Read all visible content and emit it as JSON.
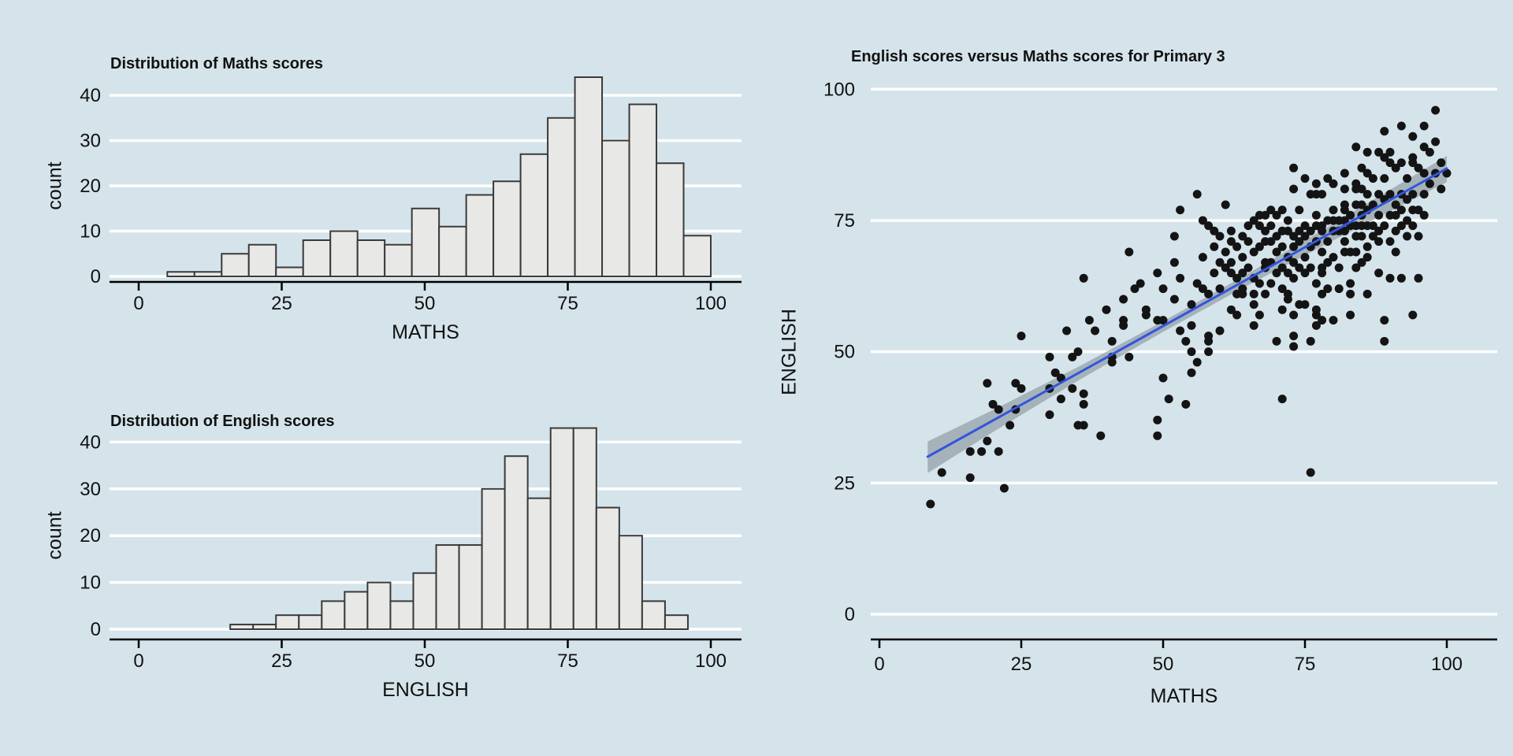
{
  "canvas": {
    "background": "#d5e4eb",
    "grid_color": "#ffffff",
    "text_color": "#111111"
  },
  "plots": {
    "maths_hist": {
      "title": "Distribution of Maths scores",
      "xlabel": "MATHS",
      "ylabel": "count"
    },
    "english_hist": {
      "title": "Distribution of English scores",
      "xlabel": "ENGLISH",
      "ylabel": "count"
    },
    "scatter": {
      "title": "English scores versus Maths scores for Primary 3",
      "xlabel": "MATHS",
      "ylabel": "ENGLISH"
    }
  },
  "chart_data": [
    {
      "id": "maths",
      "type": "bar",
      "title": "Distribution of Maths scores",
      "xlabel": "MATHS",
      "ylabel": "count",
      "bin_start": 5,
      "bin_width": 4.75,
      "counts": [
        1,
        1,
        5,
        7,
        2,
        8,
        10,
        8,
        7,
        15,
        11,
        18,
        21,
        27,
        35,
        44,
        30,
        38,
        25,
        9
      ],
      "x_ticks": [
        0,
        25,
        50,
        75,
        100
      ],
      "y_ticks": [
        0,
        10,
        20,
        30,
        40
      ],
      "xlim": [
        -5,
        105
      ],
      "ylim": [
        0,
        46
      ],
      "grid": true,
      "bar_fill": "#e8e8e6",
      "bar_stroke": "#3a3a3a"
    },
    {
      "id": "english",
      "type": "bar",
      "title": "Distribution of English scores",
      "xlabel": "ENGLISH",
      "ylabel": "count",
      "bin_start": 16,
      "bin_width": 4,
      "counts": [
        1,
        1,
        3,
        3,
        6,
        8,
        10,
        6,
        12,
        18,
        18,
        30,
        37,
        28,
        43,
        43,
        26,
        20,
        6,
        3
      ],
      "x_ticks": [
        0,
        25,
        50,
        75,
        100
      ],
      "y_ticks": [
        0,
        10,
        20,
        30,
        40
      ],
      "xlim": [
        -5,
        105
      ],
      "ylim": [
        0,
        46
      ],
      "grid": true,
      "bar_fill": "#e8e8e6",
      "bar_stroke": "#3a3a3a"
    },
    {
      "id": "scatter",
      "type": "scatter",
      "title": "English scores versus Maths scores for Primary 3",
      "xlabel": "MATHS",
      "ylabel": "ENGLISH",
      "x_ticks": [
        0,
        25,
        50,
        75,
        100
      ],
      "y_ticks": [
        0,
        25,
        50,
        75,
        100
      ],
      "xlim": [
        0,
        105
      ],
      "ylim": [
        0,
        105
      ],
      "grid": true,
      "point_color": "#141414",
      "point_radius": 5.5,
      "regression": {
        "x1": 8.5,
        "y1": 30.0,
        "x2": 100,
        "y2": 84.9,
        "color": "#3355dd",
        "width": 3
      },
      "ci_band": {
        "x": [
          8.5,
          20,
          35,
          50,
          65,
          80,
          100
        ],
        "upper": [
          32.9,
          38.9,
          47.1,
          55.8,
          64.9,
          74.4,
          87.3
        ],
        "lower": [
          26.9,
          34.7,
          44.5,
          53.8,
          62.7,
          71.2,
          82.3
        ],
        "color": "rgba(125,136,146,0.55)"
      },
      "points": [
        [
          9,
          21
        ],
        [
          11,
          27
        ],
        [
          16,
          26
        ],
        [
          22,
          24
        ],
        [
          16,
          31
        ],
        [
          18,
          31
        ],
        [
          21,
          31
        ],
        [
          19,
          33
        ],
        [
          23,
          36
        ],
        [
          35,
          36
        ],
        [
          36,
          36
        ],
        [
          30,
          38
        ],
        [
          39,
          34
        ],
        [
          21,
          39
        ],
        [
          24,
          39
        ],
        [
          20,
          40
        ],
        [
          36,
          40
        ],
        [
          32,
          41
        ],
        [
          36,
          42
        ],
        [
          25,
          43
        ],
        [
          30,
          43
        ],
        [
          34,
          43
        ],
        [
          19,
          44
        ],
        [
          24,
          44
        ],
        [
          31,
          46
        ],
        [
          32,
          45
        ],
        [
          50,
          45
        ],
        [
          41,
          48
        ],
        [
          30,
          49
        ],
        [
          34,
          49
        ],
        [
          41,
          49
        ],
        [
          44,
          49
        ],
        [
          35,
          50
        ],
        [
          51,
          41
        ],
        [
          54,
          40
        ],
        [
          71,
          41
        ],
        [
          49,
          34
        ],
        [
          49,
          37
        ],
        [
          55,
          46
        ],
        [
          56,
          48
        ],
        [
          55,
          50
        ],
        [
          58,
          50
        ],
        [
          58,
          52
        ],
        [
          54,
          52
        ],
        [
          70,
          52
        ],
        [
          73,
          51
        ],
        [
          76,
          52
        ],
        [
          89,
          52
        ],
        [
          41,
          52
        ],
        [
          76,
          27
        ],
        [
          25,
          53
        ],
        [
          53,
          54
        ],
        [
          55,
          55
        ],
        [
          53,
          64
        ],
        [
          33,
          54
        ],
        [
          38,
          54
        ],
        [
          43,
          55
        ],
        [
          37,
          56
        ],
        [
          43,
          56
        ],
        [
          47,
          57
        ],
        [
          49,
          56
        ],
        [
          50,
          56
        ],
        [
          47,
          58
        ],
        [
          40,
          58
        ],
        [
          43,
          60
        ],
        [
          45,
          62
        ],
        [
          46,
          63
        ],
        [
          50,
          62
        ],
        [
          36,
          64
        ],
        [
          49,
          65
        ],
        [
          44,
          69
        ],
        [
          52,
          60
        ],
        [
          52,
          72
        ],
        [
          52,
          67
        ],
        [
          55,
          59
        ],
        [
          57,
          62
        ],
        [
          58,
          61
        ],
        [
          58,
          53
        ],
        [
          60,
          54
        ],
        [
          63,
          57
        ],
        [
          62,
          58
        ],
        [
          67,
          57
        ],
        [
          66,
          55
        ],
        [
          73,
          53
        ],
        [
          83,
          57
        ],
        [
          89,
          56
        ],
        [
          86,
          61
        ],
        [
          94,
          57
        ],
        [
          60,
          67
        ],
        [
          61,
          66
        ],
        [
          62,
          67
        ],
        [
          62,
          65
        ],
        [
          63,
          64
        ],
        [
          64,
          65
        ],
        [
          66,
          64
        ],
        [
          64,
          62
        ],
        [
          64,
          61
        ],
        [
          66,
          61
        ],
        [
          66,
          59
        ],
        [
          68,
          67
        ],
        [
          68,
          66
        ],
        [
          69,
          63
        ],
        [
          70,
          65
        ],
        [
          71,
          66
        ],
        [
          72,
          65
        ],
        [
          73,
          67
        ],
        [
          74,
          66
        ],
        [
          75,
          65
        ],
        [
          72,
          61
        ],
        [
          72,
          60
        ],
        [
          71,
          58
        ],
        [
          73,
          57
        ],
        [
          74,
          59
        ],
        [
          75,
          59
        ],
        [
          78,
          65
        ],
        [
          78,
          66
        ],
        [
          77,
          63
        ],
        [
          79,
          62
        ],
        [
          81,
          62
        ],
        [
          77,
          57
        ],
        [
          77,
          58
        ],
        [
          78,
          56
        ],
        [
          77,
          55
        ],
        [
          80,
          56
        ],
        [
          78,
          61
        ],
        [
          83,
          61
        ],
        [
          83,
          63
        ],
        [
          85,
          67
        ],
        [
          86,
          68
        ],
        [
          84,
          69
        ],
        [
          82,
          69
        ],
        [
          88,
          65
        ],
        [
          90,
          64
        ],
        [
          92,
          64
        ],
        [
          95,
          64
        ],
        [
          56,
          80
        ],
        [
          53,
          77
        ],
        [
          61,
          78
        ],
        [
          62,
          71
        ],
        [
          60,
          72
        ],
        [
          57,
          75
        ],
        [
          58,
          74
        ],
        [
          59,
          73
        ],
        [
          65,
          74
        ],
        [
          64,
          72
        ],
        [
          66,
          75
        ],
        [
          67,
          76
        ],
        [
          68,
          76
        ],
        [
          69,
          77
        ],
        [
          67,
          74
        ],
        [
          68,
          73
        ],
        [
          69,
          71
        ],
        [
          71,
          77
        ],
        [
          70,
          76
        ],
        [
          73,
          81
        ],
        [
          76,
          80
        ],
        [
          71,
          73
        ],
        [
          72,
          73
        ],
        [
          73,
          72
        ],
        [
          74,
          73
        ],
        [
          75,
          74
        ],
        [
          76,
          73
        ],
        [
          77,
          74
        ],
        [
          78,
          73
        ],
        [
          79,
          75
        ],
        [
          80,
          75
        ],
        [
          81,
          73
        ],
        [
          82,
          75
        ],
        [
          82,
          73
        ],
        [
          83,
          74
        ],
        [
          84,
          72
        ],
        [
          85,
          74
        ],
        [
          87,
          74
        ],
        [
          86,
          74
        ],
        [
          88,
          71
        ],
        [
          91,
          73
        ],
        [
          93,
          72
        ],
        [
          95,
          72
        ],
        [
          73,
          85
        ],
        [
          75,
          83
        ],
        [
          77,
          82
        ],
        [
          79,
          83
        ],
        [
          80,
          82
        ],
        [
          77,
          80
        ],
        [
          78,
          80
        ],
        [
          80,
          77
        ],
        [
          82,
          77
        ],
        [
          84,
          78
        ],
        [
          85,
          78
        ],
        [
          86,
          80
        ],
        [
          88,
          76
        ],
        [
          90,
          76
        ],
        [
          91,
          76
        ],
        [
          92,
          77
        ],
        [
          93,
          79
        ],
        [
          94,
          77
        ],
        [
          96,
          80
        ],
        [
          82,
          81
        ],
        [
          84,
          81
        ],
        [
          85,
          81
        ],
        [
          82,
          84
        ],
        [
          84,
          82
        ],
        [
          86,
          84
        ],
        [
          87,
          83
        ],
        [
          85,
          85
        ],
        [
          89,
          83
        ],
        [
          91,
          85
        ],
        [
          90,
          86
        ],
        [
          92,
          86
        ],
        [
          90,
          88
        ],
        [
          88,
          88
        ],
        [
          86,
          88
        ],
        [
          84,
          89
        ],
        [
          89,
          87
        ],
        [
          94,
          86
        ],
        [
          94,
          87
        ],
        [
          96,
          89
        ],
        [
          89,
          92
        ],
        [
          92,
          93
        ],
        [
          96,
          93
        ],
        [
          94,
          91
        ],
        [
          98,
          96
        ],
        [
          56,
          63
        ],
        [
          57,
          68
        ],
        [
          59,
          65
        ],
        [
          59,
          70
        ],
        [
          60,
          62
        ],
        [
          61,
          69
        ],
        [
          62,
          73
        ],
        [
          63,
          70
        ],
        [
          63,
          61
        ],
        [
          64,
          68
        ],
        [
          65,
          66
        ],
        [
          65,
          71
        ],
        [
          66,
          69
        ],
        [
          67,
          63
        ],
        [
          67,
          70
        ],
        [
          68,
          61
        ],
        [
          68,
          71
        ],
        [
          69,
          67
        ],
        [
          69,
          74
        ],
        [
          70,
          69
        ],
        [
          70,
          72
        ],
        [
          71,
          62
        ],
        [
          71,
          70
        ],
        [
          72,
          68
        ],
        [
          72,
          75
        ],
        [
          73,
          64
        ],
        [
          73,
          70
        ],
        [
          74,
          71
        ],
        [
          74,
          77
        ],
        [
          75,
          68
        ],
        [
          75,
          72
        ],
        [
          76,
          66
        ],
        [
          76,
          70
        ],
        [
          77,
          71
        ],
        [
          77,
          76
        ],
        [
          78,
          69
        ],
        [
          78,
          74
        ],
        [
          79,
          67
        ],
        [
          79,
          71
        ],
        [
          80,
          73
        ],
        [
          80,
          68
        ],
        [
          81,
          75
        ],
        [
          81,
          66
        ],
        [
          82,
          71
        ],
        [
          82,
          78
        ],
        [
          83,
          69
        ],
        [
          83,
          76
        ],
        [
          84,
          74
        ],
        [
          84,
          66
        ],
        [
          85,
          72
        ],
        [
          85,
          76
        ],
        [
          86,
          70
        ],
        [
          86,
          77
        ],
        [
          87,
          72
        ],
        [
          87,
          78
        ],
        [
          88,
          73
        ],
        [
          88,
          80
        ],
        [
          89,
          74
        ],
        [
          89,
          79
        ],
        [
          90,
          71
        ],
        [
          90,
          80
        ],
        [
          91,
          78
        ],
        [
          91,
          69
        ],
        [
          92,
          80
        ],
        [
          92,
          74
        ],
        [
          93,
          75
        ],
        [
          93,
          83
        ],
        [
          94,
          80
        ],
        [
          94,
          74
        ],
        [
          95,
          77
        ],
        [
          95,
          85
        ],
        [
          96,
          84
        ],
        [
          96,
          76
        ],
        [
          97,
          82
        ],
        [
          97,
          88
        ],
        [
          98,
          84
        ],
        [
          98,
          90
        ],
        [
          99,
          86
        ],
        [
          99,
          81
        ],
        [
          100,
          84
        ]
      ]
    }
  ]
}
